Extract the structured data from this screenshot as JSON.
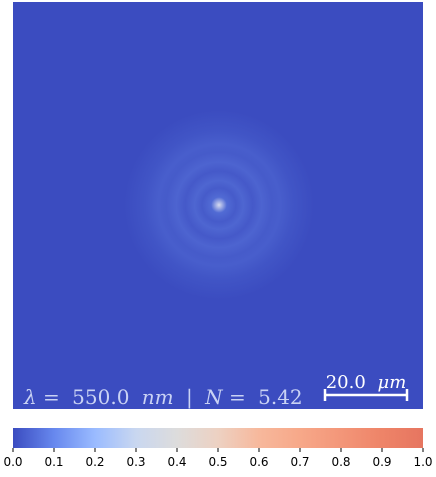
{
  "chart_data": {
    "type": "heatmap",
    "description_type": "diffraction intensity pattern (Airy-like rings)",
    "image": {
      "background_color": "#3b4cc0",
      "center_peak_color": "#d7dcf0",
      "ring_color": "#5b78dd",
      "ring_profile": [
        {
          "r_um": 0.0,
          "intensity": 0.1
        },
        {
          "r_um": 1.5,
          "intensity": 0.07
        },
        {
          "r_um": 3.2,
          "intensity": 0.035
        },
        {
          "r_um": 4.6,
          "intensity": 0.06
        },
        {
          "r_um": 6.4,
          "intensity": 0.03
        },
        {
          "r_um": 8.1,
          "intensity": 0.055
        },
        {
          "r_um": 10.0,
          "intensity": 0.035
        },
        {
          "r_um": 11.6,
          "intensity": 0.04
        },
        {
          "r_um": 14.0,
          "intensity": 0.02
        },
        {
          "r_um": 18.0,
          "intensity": 0.0
        }
      ]
    },
    "annotation": {
      "lambda_symbol": "λ",
      "lambda_eq": "=",
      "lambda_value": "550.0",
      "lambda_unit": "nm",
      "separator": "|",
      "n_symbol": "N",
      "n_eq": "=",
      "n_value": "5.42"
    },
    "scale_bar": {
      "value": "20.0",
      "unit": "μm"
    },
    "colorbar": {
      "colormap": "coolwarm",
      "colors": [
        "#3b4cc0",
        "#6788ee",
        "#9abbff",
        "#c9d7f0",
        "#dddcdc",
        "#edd1c2",
        "#f7b89c",
        "#f7a889",
        "#f39679",
        "#ee8468",
        "#e67560"
      ],
      "range": [
        0.0,
        1.0
      ],
      "ticks": [
        "0.0",
        "0.1",
        "0.2",
        "0.3",
        "0.4",
        "0.5",
        "0.6",
        "0.7",
        "0.8",
        "0.9",
        "1.0"
      ]
    }
  }
}
